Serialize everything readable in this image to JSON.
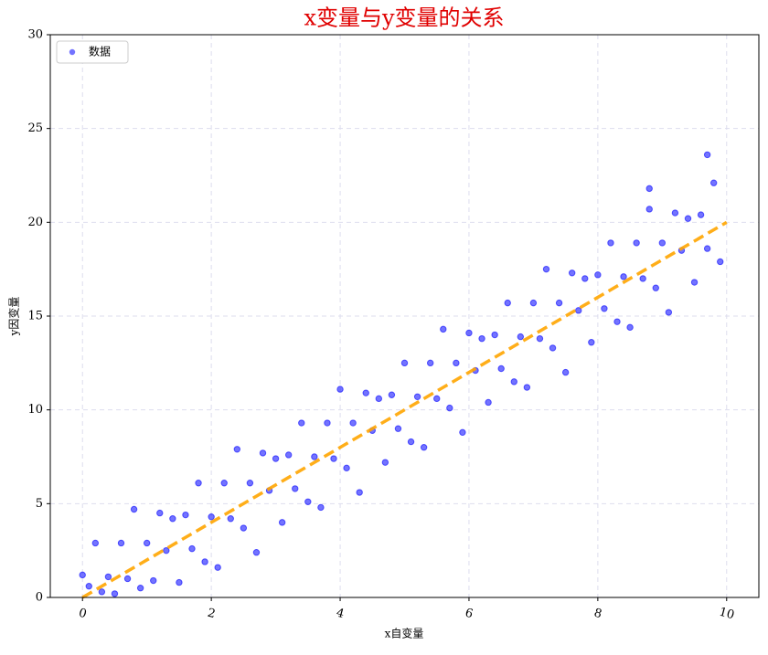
{
  "chart_data": {
    "type": "scatter",
    "title": "x变量与y变量的关系",
    "x_label": "x自变量",
    "y_label": "y因变量",
    "xlim": [
      -0.5,
      10.5
    ],
    "ylim": [
      0,
      30
    ],
    "xticks": [
      0,
      2,
      4,
      6,
      8,
      10
    ],
    "yticks": [
      0,
      5,
      10,
      15,
      20,
      25,
      30
    ],
    "grid": true,
    "legend": "upper left",
    "series": [
      {
        "name": "数据",
        "type": "scatter",
        "color": "#0000ff",
        "x": [
          0,
          0.1,
          0.2,
          0.3,
          0.4,
          0.5,
          0.6,
          0.7,
          0.8,
          0.9,
          1.0,
          1.1,
          1.2,
          1.3,
          1.4,
          1.5,
          1.6,
          1.7,
          1.8,
          1.9,
          2.0,
          2.1,
          2.2,
          2.3,
          2.4,
          2.5,
          2.6,
          2.7,
          2.8,
          2.9,
          3.0,
          3.1,
          3.2,
          3.3,
          3.4,
          3.5,
          3.6,
          3.7,
          3.8,
          3.9,
          4.0,
          4.1,
          4.2,
          4.3,
          4.4,
          4.5,
          4.6,
          4.7,
          4.8,
          4.9,
          5.0,
          5.1,
          5.2,
          5.3,
          5.4,
          5.5,
          5.6,
          5.7,
          5.8,
          5.9,
          6.0,
          6.1,
          6.2,
          6.3,
          6.4,
          6.5,
          6.6,
          6.7,
          6.8,
          6.9,
          7.0,
          7.1,
          7.2,
          7.3,
          7.4,
          7.5,
          7.6,
          7.7,
          7.8,
          7.9,
          8.0,
          8.1,
          8.2,
          8.3,
          8.4,
          8.5,
          8.6,
          8.7,
          8.8,
          8.9,
          9.0,
          9.1,
          9.2,
          9.3,
          9.4,
          9.5,
          9.6,
          9.7,
          9.8,
          9.9,
          9.7,
          8.8
        ],
        "values": [
          1.2,
          0.6,
          2.9,
          0.3,
          1.1,
          0.2,
          2.9,
          1.0,
          4.7,
          0.5,
          2.9,
          0.9,
          4.5,
          2.5,
          4.2,
          0.8,
          4.4,
          2.6,
          6.1,
          1.9,
          4.3,
          1.6,
          6.1,
          4.2,
          7.9,
          3.7,
          6.1,
          2.4,
          7.7,
          5.7,
          7.4,
          4.0,
          7.6,
          5.8,
          9.3,
          5.1,
          7.5,
          4.8,
          9.3,
          7.4,
          11.1,
          6.9,
          9.3,
          5.6,
          10.9,
          8.9,
          10.6,
          7.2,
          10.8,
          9.0,
          12.5,
          8.3,
          10.7,
          8.0,
          12.5,
          10.6,
          14.3,
          10.1,
          12.5,
          8.8,
          14.1,
          12.1,
          13.8,
          10.4,
          14.0,
          12.2,
          15.7,
          11.5,
          13.9,
          11.2,
          15.7,
          13.8,
          17.5,
          13.3,
          15.7,
          12.0,
          17.3,
          15.3,
          17.0,
          13.6,
          17.2,
          15.4,
          18.9,
          14.7,
          17.1,
          14.4,
          18.9,
          17.0,
          20.7,
          16.5,
          18.9,
          15.2,
          20.5,
          18.5,
          20.2,
          16.8,
          20.4,
          18.6,
          22.1,
          17.9,
          23.6,
          21.8
        ]
      },
      {
        "type": "line",
        "color": "#ffa500",
        "x": [
          0,
          10
        ],
        "values": [
          0,
          20
        ]
      }
    ]
  }
}
